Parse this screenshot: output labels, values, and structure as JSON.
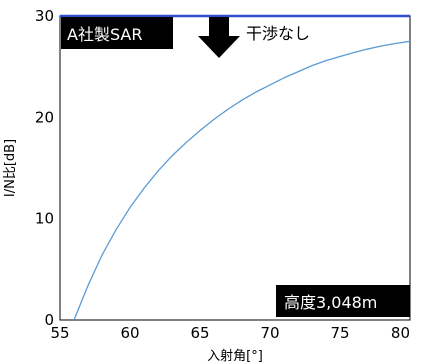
{
  "chart_data": {
    "type": "line",
    "xlabel": "入射角[°]",
    "ylabel": "I/N比[dB]",
    "xlim": [
      55,
      80
    ],
    "ylim": [
      0,
      30
    ],
    "x_ticks": [
      55,
      60,
      65,
      70,
      75,
      80
    ],
    "y_ticks": [
      0,
      10,
      20,
      30
    ],
    "grid": false,
    "series": [
      {
        "color": "#5b9bd5",
        "x": [
          56.0,
          57.0,
          58.0,
          59.0,
          60.0,
          61.0,
          62.0,
          63.0,
          64.0,
          65.0,
          66.0,
          67.0,
          68.0,
          69.0,
          70.0,
          71.0,
          72.0,
          73.0,
          74.0,
          75.0,
          76.0,
          77.0,
          78.0,
          79.0,
          80.0
        ],
        "y": [
          0.0,
          3.4,
          6.4,
          8.9,
          11.1,
          13.0,
          14.7,
          16.2,
          17.5,
          18.7,
          19.8,
          20.8,
          21.7,
          22.5,
          23.2,
          23.9,
          24.5,
          25.1,
          25.6,
          26.0,
          26.4,
          26.75,
          27.05,
          27.3,
          27.5
        ]
      }
    ],
    "threshold": {
      "value": 30,
      "color": "#2f4fd0"
    },
    "annotations": {
      "company_label": "A社製SAR",
      "interference_label": "干渉なし",
      "altitude_label": "高度3,048m"
    }
  }
}
